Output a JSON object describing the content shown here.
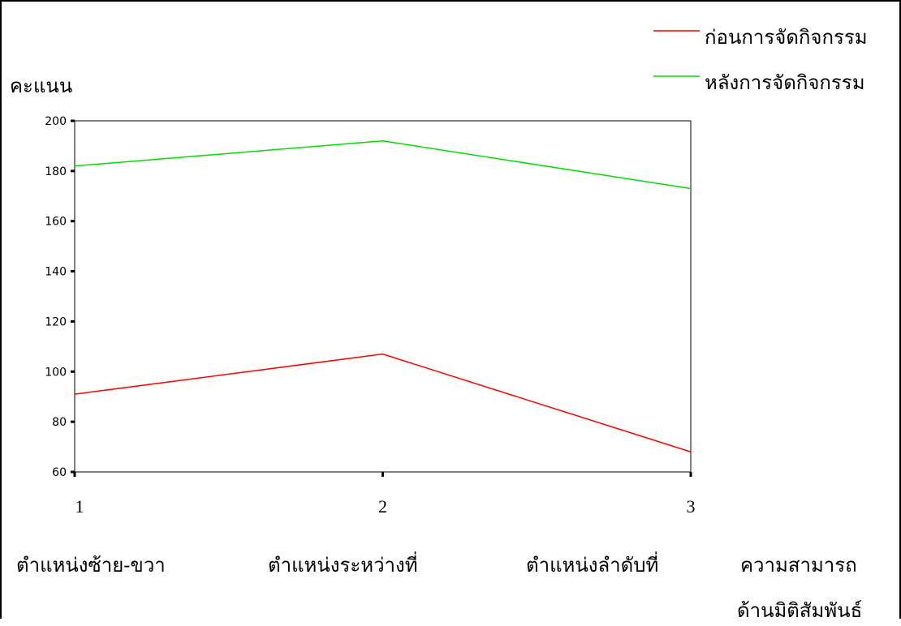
{
  "chart_data": {
    "type": "line",
    "ylabel": "คะแนน",
    "xlabel_lines": [
      "ความสามารถ",
      "ด้านมิติสัมพันธ์"
    ],
    "x": [
      1,
      2,
      3
    ],
    "x_tick_labels": [
      "1",
      "2",
      "3"
    ],
    "category_labels": [
      "ตำแหน่งซ้าย-ขวา",
      "ตำแหน่งระหว่างที่",
      "ตำแหน่งลำดับที่"
    ],
    "ylim": [
      60,
      200
    ],
    "yticks": [
      60,
      80,
      100,
      120,
      140,
      160,
      180,
      200
    ],
    "legend_position": "top-right",
    "series": [
      {
        "name": "ก่อนการจัดกิจกรรม",
        "values": [
          91,
          107,
          68
        ],
        "color": "#ff0000"
      },
      {
        "name": "หลังการจัดกิจกรรม",
        "values": [
          182,
          192,
          173
        ],
        "color": "#00dd00"
      }
    ]
  }
}
